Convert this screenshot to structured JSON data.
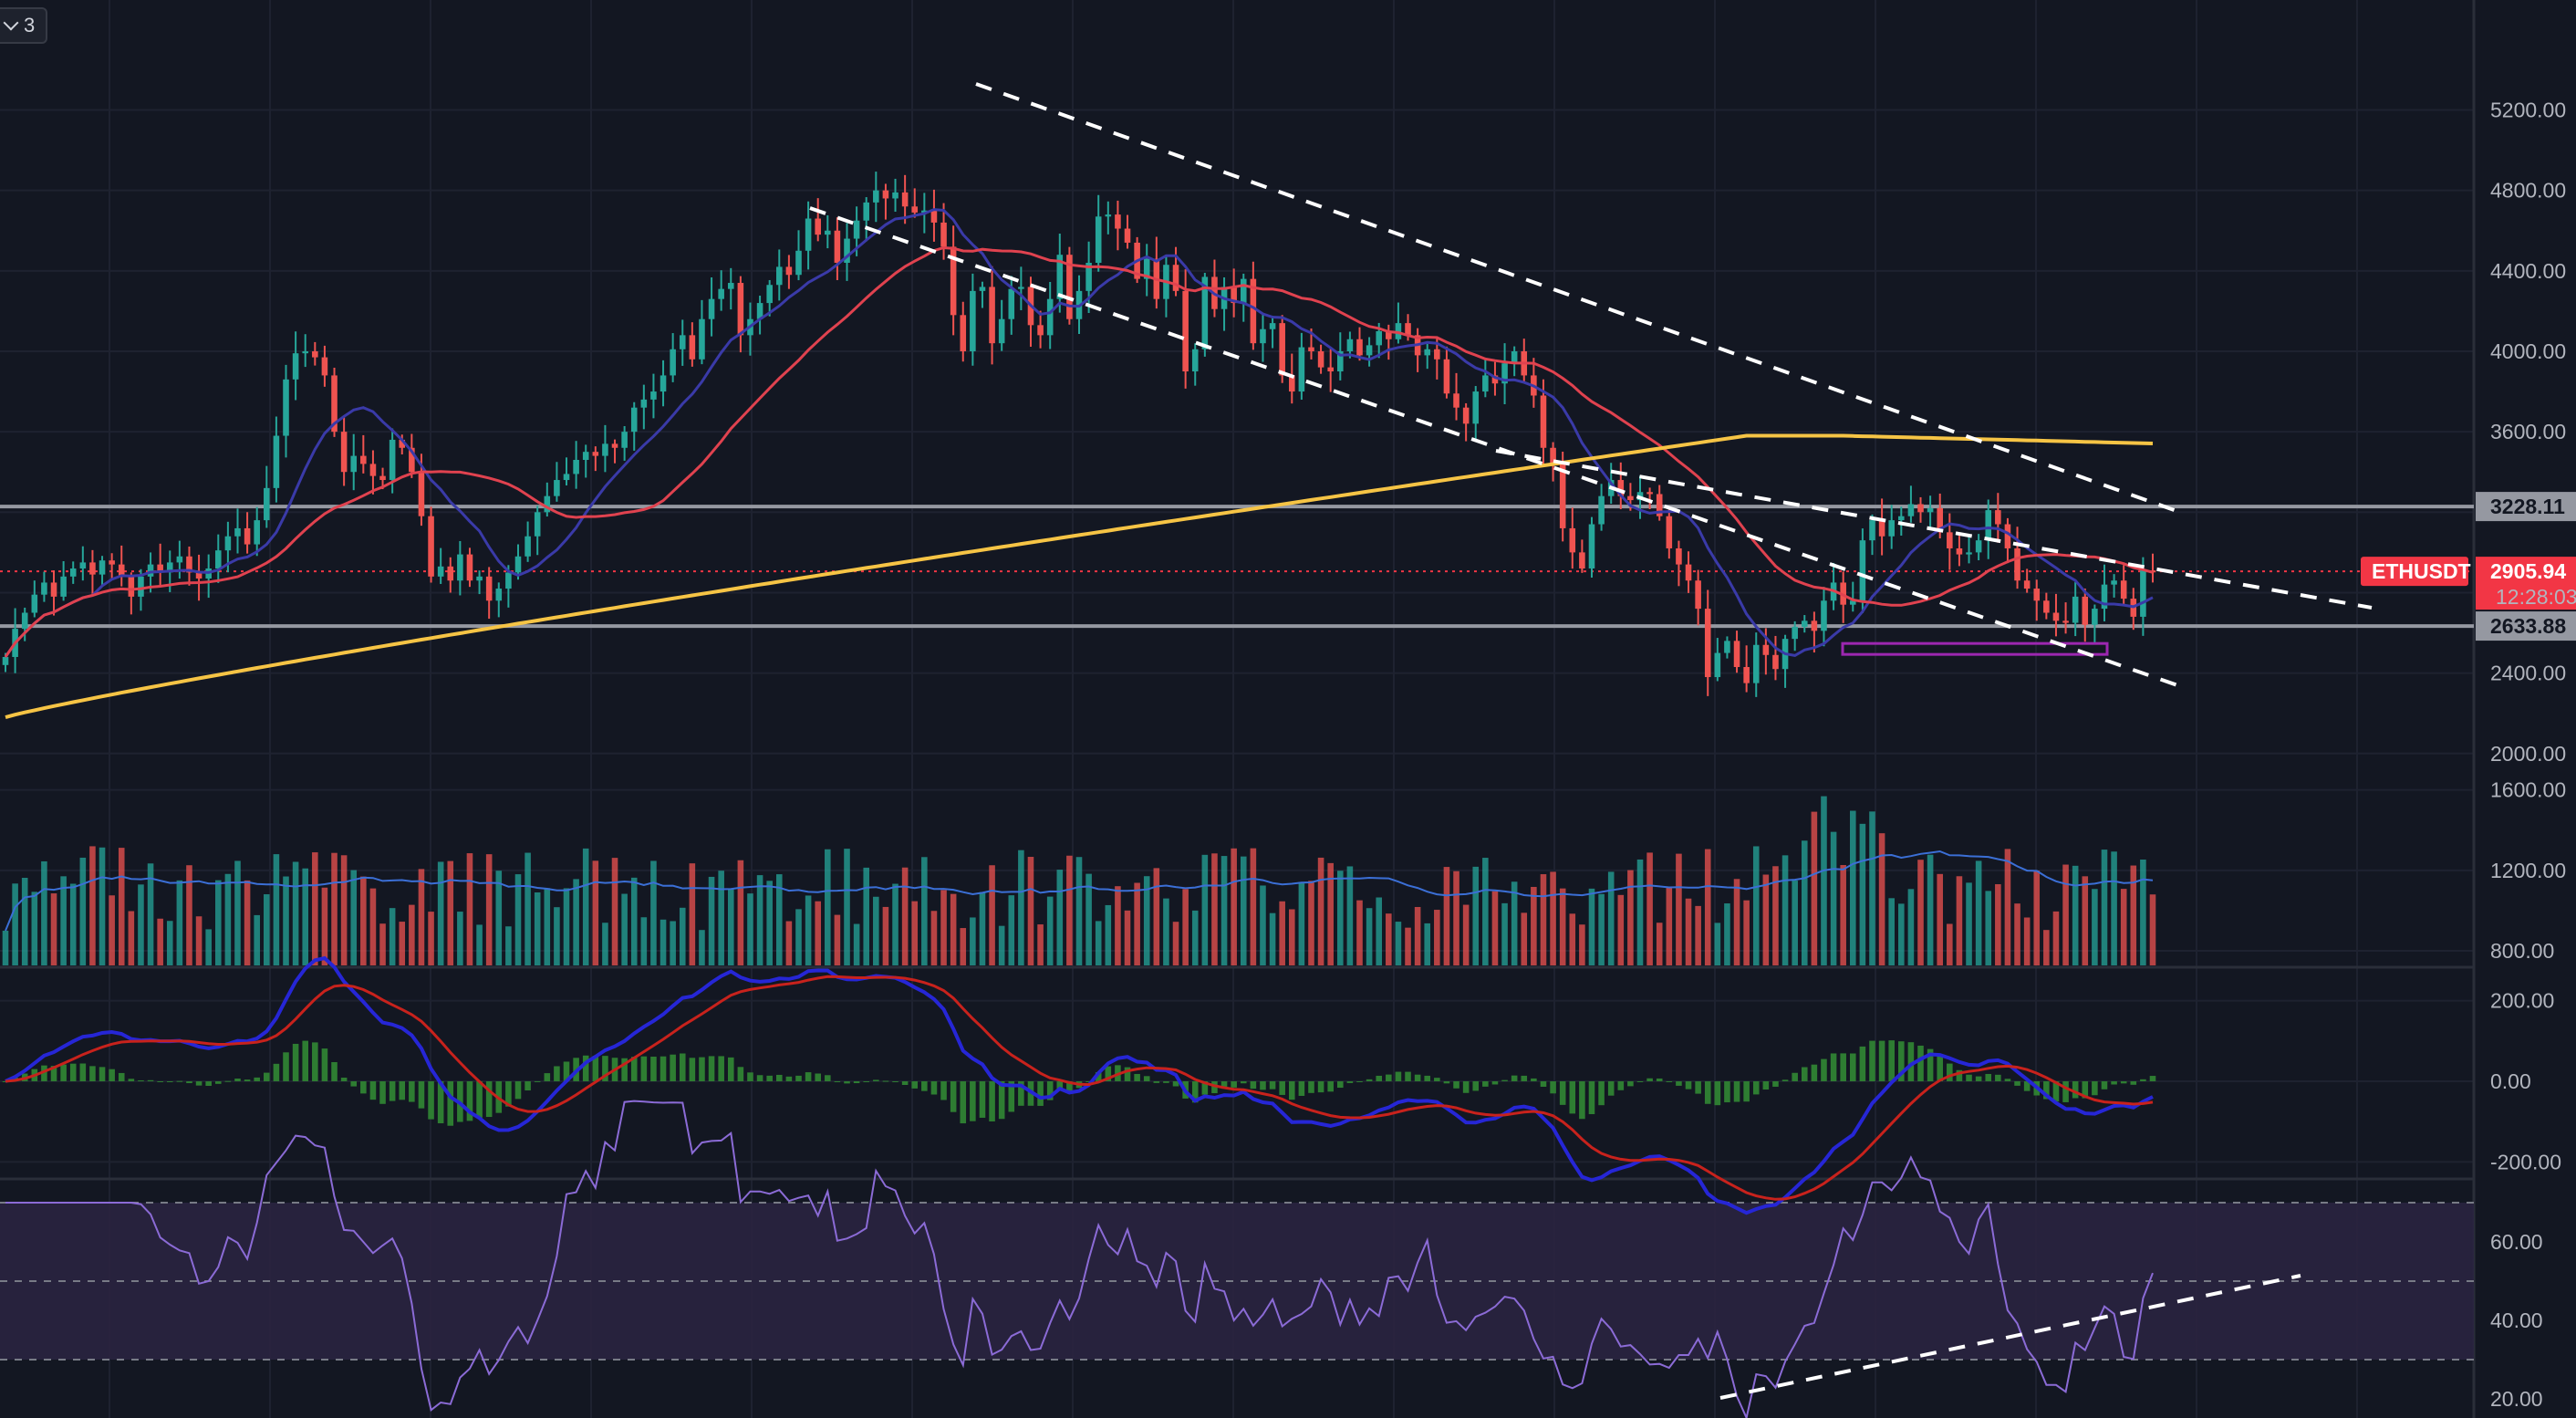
{
  "toolbar": {
    "indicator_count": "3",
    "toggle_icon": "chevron-down-icon"
  },
  "symbol": {
    "name": "ETHUSDT",
    "last_price": "2905.94",
    "countdown": "12:28:03"
  },
  "colors": {
    "background": "#131722",
    "grid": "#1e2230",
    "up": "#26a69a",
    "down": "#ef5350",
    "ma_fast": "#3a3aa8",
    "ma_slow": "#e0424f",
    "ma_long": "#f6c445",
    "macd": "#2626d6",
    "signal": "#c8221c",
    "hist": "#2e7d32",
    "rsi": "#8b6bd6",
    "rsi_band": "#2a2440",
    "level": "#9598a1",
    "trendline": "#ffffff",
    "price_tag": "#f23645"
  },
  "chart_data": [
    {
      "type": "candlestick",
      "pane": "price",
      "y_ticks": [
        "5200.00",
        "4800.00",
        "4400.00",
        "4000.00",
        "3600.00",
        "2400.00",
        "2000.00"
      ],
      "ylim": [
        1950,
        5250
      ],
      "horizontal_levels": [
        "3228.11",
        "2633.88"
      ],
      "price_line": "2905.94",
      "candles_close": [
        2480,
        2620,
        2700,
        2790,
        2850,
        2780,
        2880,
        2920,
        2950,
        2890,
        2960,
        2940,
        2880,
        2780,
        2880,
        2940,
        2900,
        2950,
        2980,
        2900,
        2870,
        2920,
        3010,
        3080,
        3120,
        3040,
        3160,
        3320,
        3580,
        3860,
        3990,
        4000,
        3970,
        3880,
        3600,
        3400,
        3480,
        3440,
        3380,
        3360,
        3560,
        3520,
        3400,
        3180,
        2880,
        2930,
        2860,
        2990,
        2860,
        2880,
        2760,
        2820,
        2900,
        2980,
        3080,
        3200,
        3280,
        3360,
        3390,
        3460,
        3500,
        3480,
        3540,
        3520,
        3600,
        3720,
        3760,
        3800,
        3880,
        4010,
        4080,
        3960,
        4160,
        4260,
        4310,
        4340,
        4080,
        4160,
        4240,
        4330,
        4420,
        4380,
        4500,
        4660,
        4580,
        4600,
        4440,
        4560,
        4650,
        4740,
        4800,
        4760,
        4790,
        4720,
        4690,
        4700,
        4640,
        4520,
        4180,
        4000,
        4300,
        4320,
        4040,
        4160,
        4310,
        4320,
        4130,
        4080,
        4260,
        4480,
        4160,
        4300,
        4440,
        4670,
        4680,
        4610,
        4540,
        4360,
        4460,
        4260,
        4430,
        4300,
        3900,
        4010,
        4370,
        4210,
        4320,
        4240,
        4360,
        4040,
        4110,
        4140,
        3880,
        3800,
        4020,
        4000,
        3920,
        3900,
        4000,
        4060,
        3980,
        4030,
        4100,
        4060,
        4140,
        4080,
        3980,
        4010,
        3960,
        3790,
        3720,
        3640,
        3800,
        3880,
        3840,
        3940,
        4000,
        3880,
        3780,
        3520,
        3440,
        3120,
        3000,
        2920,
        3140,
        3280,
        3360,
        3280,
        3260,
        3300,
        3290,
        3180,
        3020,
        2940,
        2860,
        2720,
        2380,
        2500,
        2560,
        2430,
        2350,
        2540,
        2490,
        2420,
        2570,
        2630,
        2660,
        2610,
        2760,
        2850,
        2740,
        2760,
        3060,
        3160,
        3080,
        3160,
        3180,
        3240,
        3200,
        3220,
        3100,
        3020,
        2990,
        3000,
        3060,
        3210,
        3140,
        3020,
        2860,
        2820,
        2760,
        2700,
        2660,
        2650,
        2780,
        2640,
        2720,
        2840,
        2860,
        2770,
        2680,
        2910,
        2905.94
      ]
    },
    {
      "type": "bar",
      "pane": "volume",
      "y_ticks": [
        "1600.00",
        "1200.00",
        "800.00"
      ],
      "ylim": [
        700,
        2000
      ]
    },
    {
      "type": "line",
      "pane": "macd",
      "y_ticks": [
        "200.00",
        "0.00",
        "-200.00"
      ],
      "ylim": [
        -280,
        300
      ]
    },
    {
      "type": "line",
      "pane": "rsi",
      "y_ticks": [
        "60.00",
        "40.00",
        "20.00"
      ],
      "ylim": [
        17,
        75
      ],
      "bands": [
        70,
        50,
        30
      ]
    }
  ]
}
